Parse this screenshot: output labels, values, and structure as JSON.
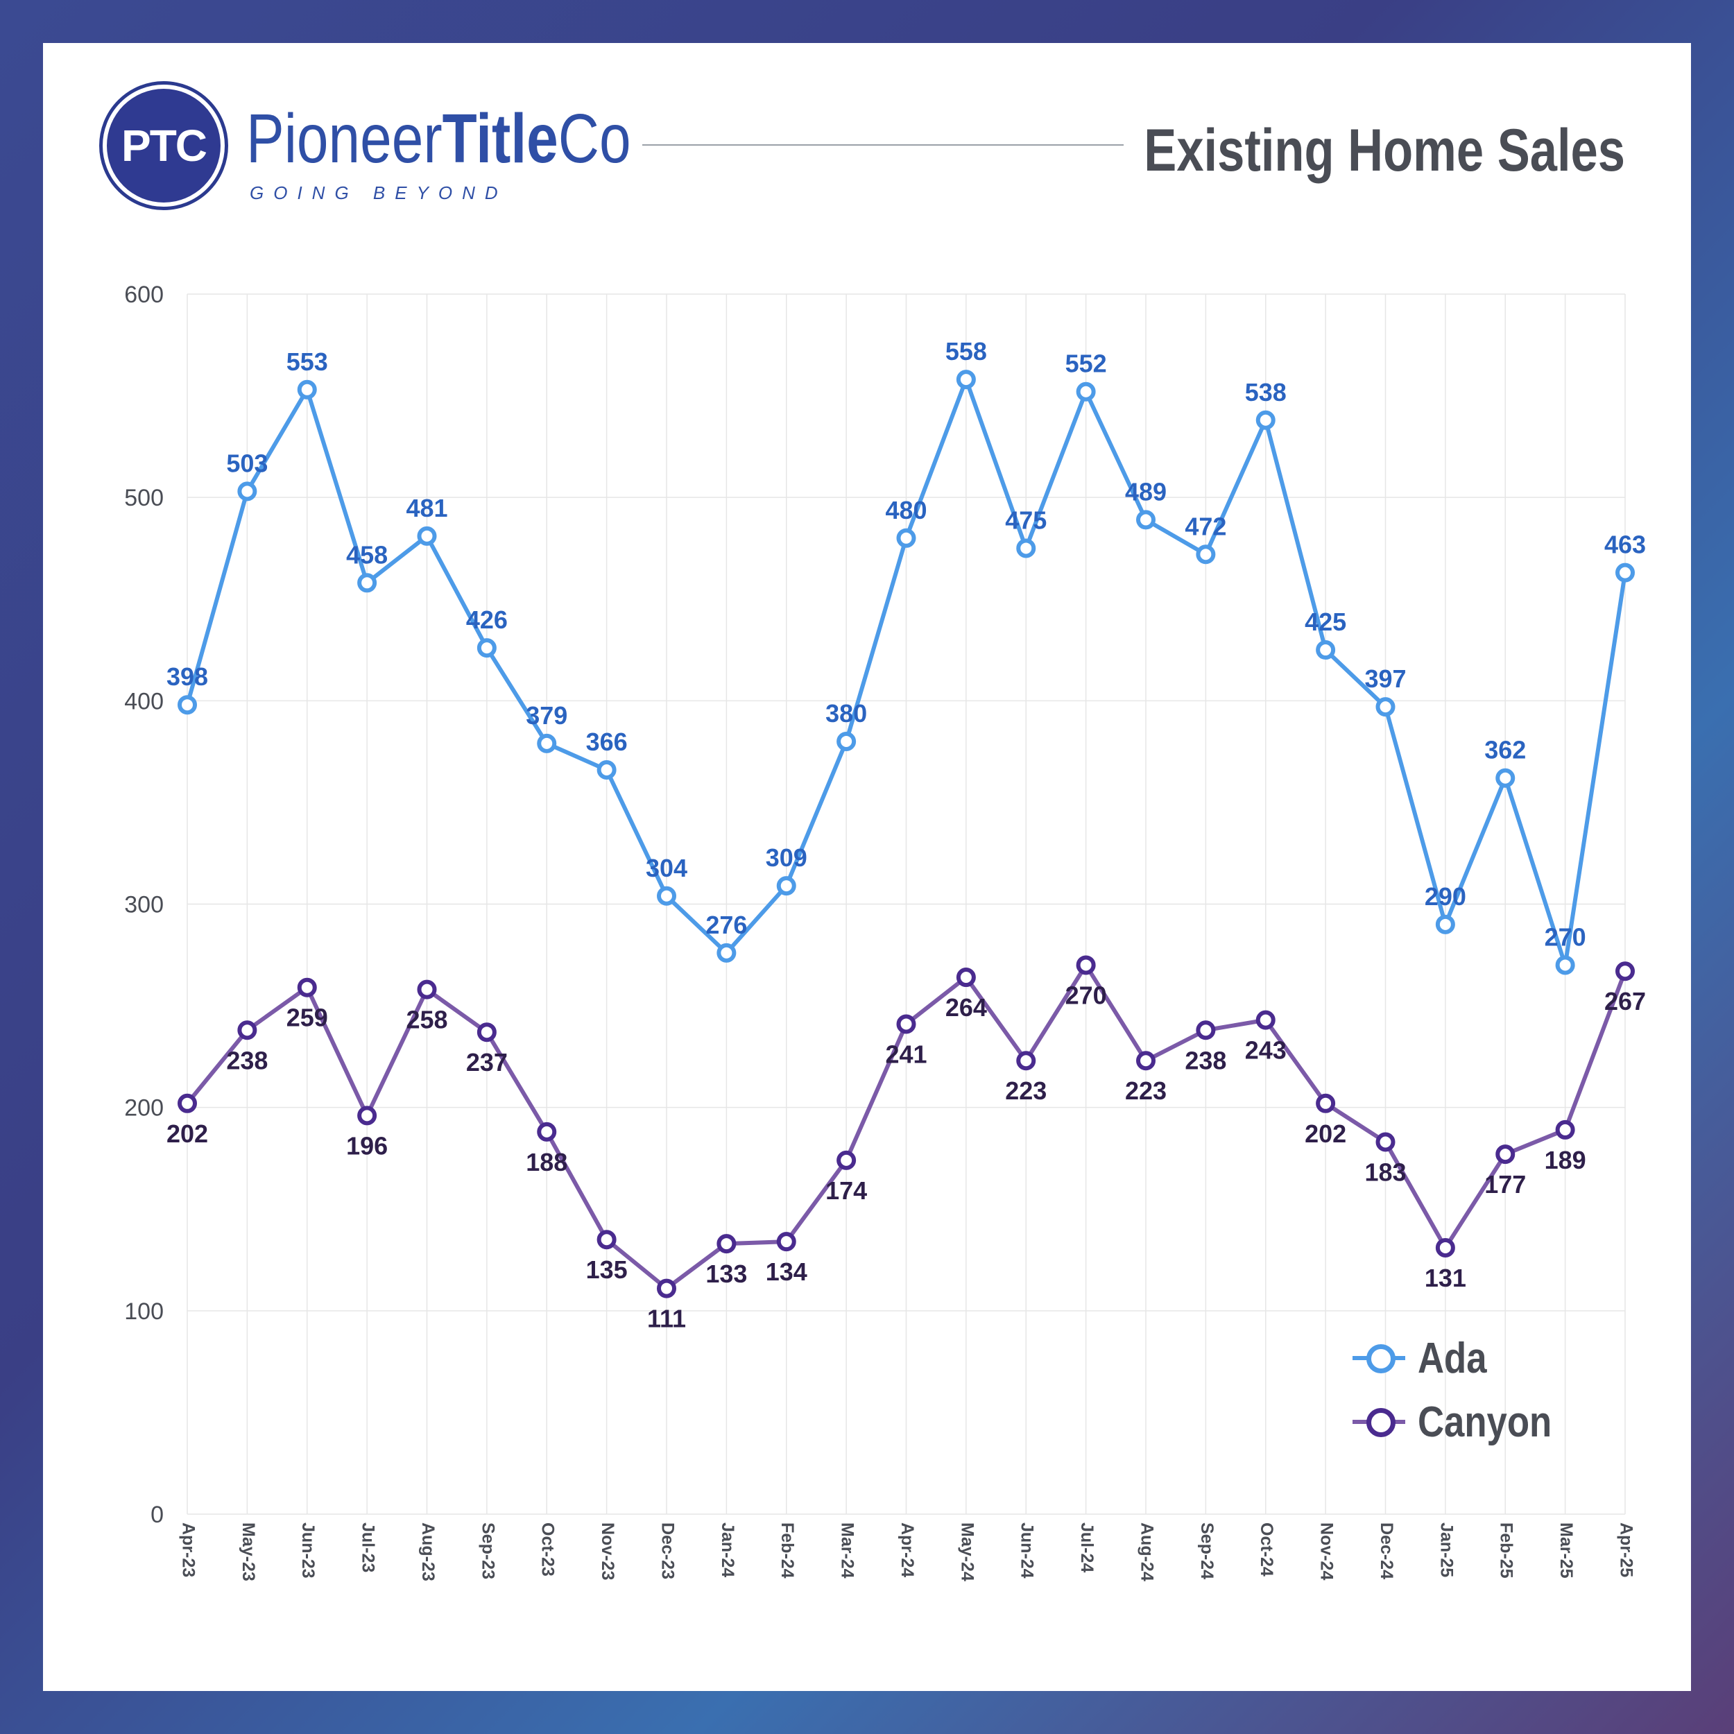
{
  "brand": {
    "badge": "PTC",
    "name_light_1": "Pioneer",
    "name_bold": "Title",
    "name_light_2": "Co",
    "tagline": "GOING BEYOND"
  },
  "title": "Existing Home Sales",
  "colors": {
    "ada": "#4d9be8",
    "ada_label": "#2a63c0",
    "canyon": "#7b5aa8",
    "canyon_marker": "#4a2b8f",
    "canyon_label": "#2e1f4a",
    "axis_text": "#4a4d55",
    "grid": "#e6e6e6"
  },
  "chart_data": {
    "type": "line",
    "title": "Existing Home Sales",
    "xlabel": "",
    "ylabel": "",
    "ylim": [
      0,
      600
    ],
    "yticks": [
      0,
      100,
      200,
      300,
      400,
      500,
      600
    ],
    "grid": true,
    "legend_position": "bottom-right",
    "categories": [
      "Apr-23",
      "May-23",
      "Jun-23",
      "Jul-23",
      "Aug-23",
      "Sep-23",
      "Oct-23",
      "Nov-23",
      "Dec-23",
      "Jan-24",
      "Feb-24",
      "Mar-24",
      "Apr-24",
      "May-24",
      "Jun-24",
      "Jul-24",
      "Aug-24",
      "Sep-24",
      "Oct-24",
      "Nov-24",
      "Dec-24",
      "Jan-25",
      "Feb-25",
      "Mar-25",
      "Apr-25"
    ],
    "series": [
      {
        "name": "Ada",
        "values": [
          398,
          503,
          553,
          458,
          481,
          426,
          379,
          366,
          304,
          276,
          309,
          380,
          480,
          558,
          475,
          552,
          489,
          472,
          538,
          425,
          397,
          290,
          362,
          270,
          463
        ]
      },
      {
        "name": "Canyon",
        "values": [
          202,
          238,
          259,
          196,
          258,
          237,
          188,
          135,
          111,
          133,
          134,
          174,
          241,
          264,
          223,
          270,
          223,
          238,
          243,
          202,
          183,
          131,
          177,
          189,
          267
        ]
      }
    ]
  }
}
